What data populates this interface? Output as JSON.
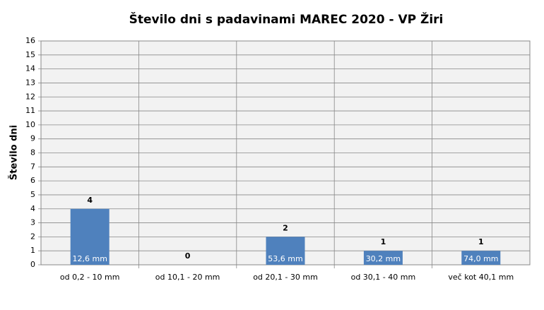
{
  "chart_data": {
    "type": "bar",
    "title": "Število dni s padavinami  MAREC 2020 - VP Žiri",
    "y_label": "Število dni",
    "categories": [
      "od 0,2 - 10 mm",
      "od 10,1 - 20 mm",
      "od 20,1 - 30 mm",
      "od 30,1 - 40 mm",
      "več kot 40,1 mm"
    ],
    "values": [
      4,
      0,
      2,
      1,
      1
    ],
    "bar_annotations": [
      "12,6 mm",
      null,
      "53,6 mm",
      "30,2 mm",
      "74,0 mm"
    ],
    "color": "#4f81bd",
    "ylim": [
      0,
      16
    ],
    "yticks": [
      0,
      1,
      2,
      3,
      4,
      5,
      6,
      7,
      8,
      9,
      10,
      11,
      12,
      13,
      14,
      15,
      16
    ],
    "grid": true
  }
}
